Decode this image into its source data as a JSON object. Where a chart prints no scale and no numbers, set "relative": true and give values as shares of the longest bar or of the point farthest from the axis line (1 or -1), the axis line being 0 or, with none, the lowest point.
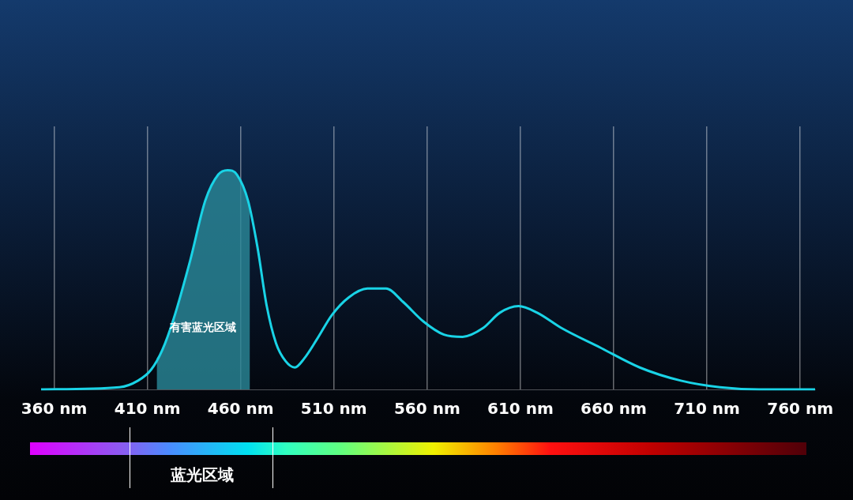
{
  "chart_data": {
    "type": "line",
    "relative": true,
    "grid": "x",
    "legend": false,
    "marker": "none",
    "xlim": [
      353,
      768
    ],
    "xticks": [
      {
        "value": 360,
        "label": "360 nm"
      },
      {
        "value": 410,
        "label": "410 nm"
      },
      {
        "value": 460,
        "label": "460 nm"
      },
      {
        "value": 510,
        "label": "510 nm"
      },
      {
        "value": 560,
        "label": "560 nm"
      },
      {
        "value": 610,
        "label": "610 nm"
      },
      {
        "value": 660,
        "label": "660 nm"
      },
      {
        "value": 710,
        "label": "710 nm"
      },
      {
        "value": 760,
        "label": "760 nm"
      }
    ],
    "series": [
      {
        "color": "#19d3e6",
        "x": [
          353,
          395,
          405,
          412,
          418,
          424,
          433,
          441,
          448,
          453,
          458,
          464,
          469,
          474,
          479,
          484,
          489,
          494,
          501,
          509,
          518,
          528,
          538,
          547,
          558,
          569,
          579,
          590,
          599,
          609,
          619,
          632,
          653,
          674,
          696,
          717,
          738,
          768
        ],
        "values": [
          0,
          0.01,
          0.04,
          0.09,
          0.18,
          0.32,
          0.59,
          0.86,
          0.98,
          1,
          0.98,
          0.86,
          0.65,
          0.38,
          0.21,
          0.13,
          0.1,
          0.14,
          0.23,
          0.34,
          0.42,
          0.46,
          0.46,
          0.4,
          0.31,
          0.25,
          0.24,
          0.28,
          0.35,
          0.38,
          0.35,
          0.28,
          0.19,
          0.1,
          0.04,
          0.01,
          0,
          0
        ]
      },
      {
        "type": "area",
        "name": "有害蓝光区域",
        "color": "#2a8a9a",
        "x": [
          415,
          418,
          424,
          433,
          441,
          448,
          453,
          458,
          464,
          465
        ],
        "values": [
          0.14,
          0.18,
          0.32,
          0.59,
          0.86,
          0.98,
          1,
          0.98,
          0.86,
          0.82
        ]
      }
    ],
    "annotations": [
      "蓝光区域"
    ]
  }
}
